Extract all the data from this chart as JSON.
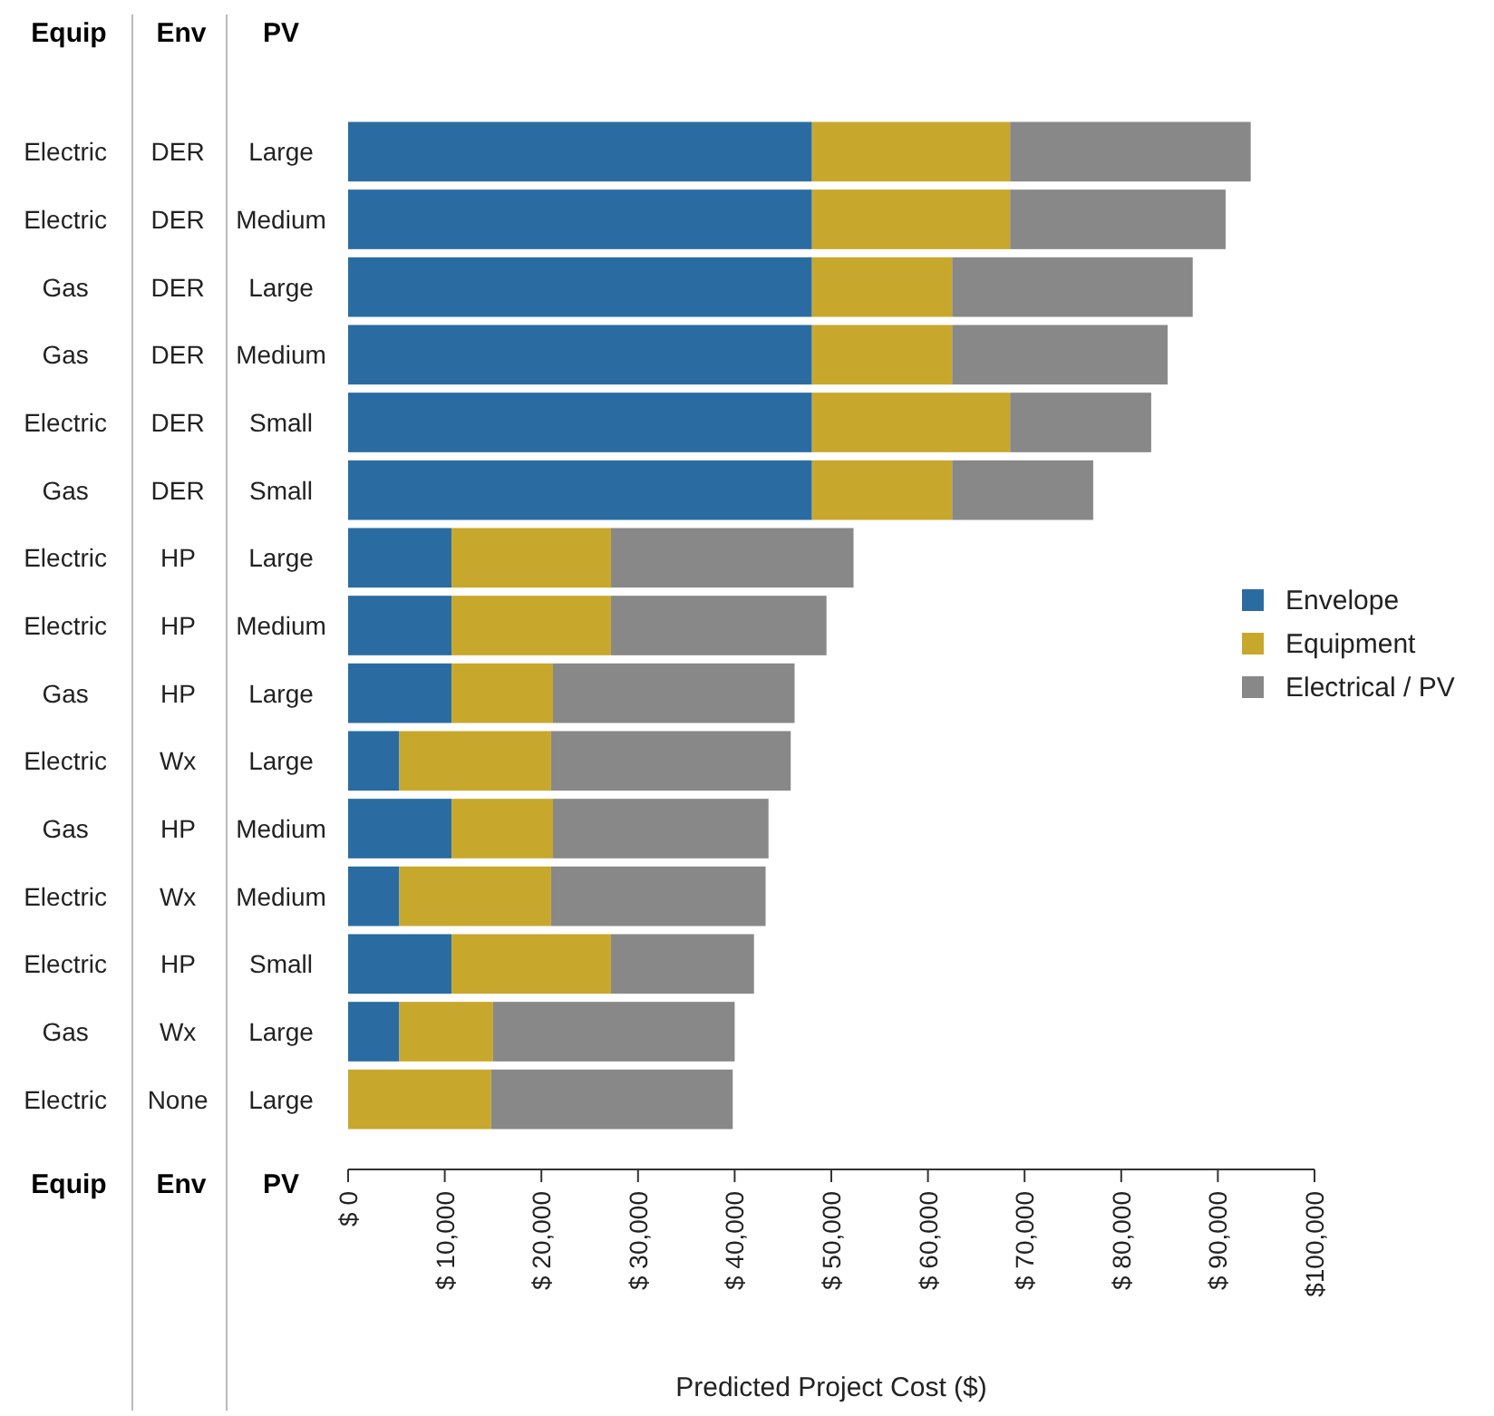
{
  "chart_data": {
    "type": "bar",
    "orientation": "horizontal",
    "stacked": true,
    "xlabel": "Predicted Project Cost ($)",
    "annotations": [
      "Equip",
      "Env",
      "PV",
      "Equip",
      "Env",
      "PV"
    ],
    "categories": [
      "Electric DER Large",
      "Electric DER Medium",
      "Gas DER Large",
      "Gas DER Medium",
      "Electric DER Small",
      "Gas DER Small",
      "Electric HP Large",
      "Electric HP Medium",
      "Gas HP Large",
      "Electric Wx Large",
      "Gas HP Medium",
      "Electric Wx Medium",
      "Electric HP Small",
      "Gas Wx Large",
      "Electric None Large"
    ],
    "series": [
      {
        "name": "Envelope",
        "color": "#2a6ca2",
        "values": [
          48000,
          48000,
          48000,
          48000,
          48000,
          48000,
          10700,
          10700,
          10700,
          5300,
          10700,
          5300,
          10700,
          5300,
          0
        ]
      },
      {
        "name": "Equipment",
        "color": "#c8a82c",
        "values": [
          20500,
          20500,
          14500,
          14500,
          20500,
          14500,
          16500,
          16500,
          10500,
          15700,
          10500,
          15700,
          16500,
          9700,
          14800
        ]
      },
      {
        "name": "Electrical / PV",
        "color": "#888888",
        "values": [
          24900,
          22300,
          24900,
          22300,
          14600,
          14600,
          25100,
          22300,
          25000,
          24800,
          22300,
          22200,
          14800,
          25000,
          25000
        ]
      }
    ],
    "xlim": [
      0,
      100000
    ],
    "xticks": [
      {
        "value": 0,
        "label": "$ 0"
      },
      {
        "value": 10000,
        "label": "$ 10,000"
      },
      {
        "value": 20000,
        "label": "$ 20,000"
      },
      {
        "value": 30000,
        "label": "$ 30,000"
      },
      {
        "value": 40000,
        "label": "$ 40,000"
      },
      {
        "value": 50000,
        "label": "$ 50,000"
      },
      {
        "value": 60000,
        "label": "$ 60,000"
      },
      {
        "value": 70000,
        "label": "$ 70,000"
      },
      {
        "value": 80000,
        "label": "$ 80,000"
      },
      {
        "value": 90000,
        "label": "$ 90,000"
      },
      {
        "value": 100000,
        "label": "$100,000"
      }
    ],
    "grid": false,
    "legend": "right"
  }
}
